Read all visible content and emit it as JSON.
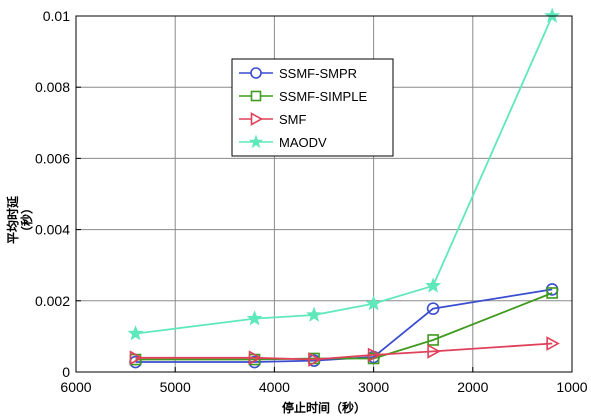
{
  "chart_data": {
    "type": "line",
    "title": "",
    "xlabel": "停止时间（秒）",
    "ylabel_line1": "平均时延",
    "ylabel_line2": "（秒）",
    "x": [
      5400,
      4200,
      3600,
      3000,
      2400,
      1200
    ],
    "xlim": [
      6000,
      1000
    ],
    "x_reversed": true,
    "ylim": [
      0,
      0.01
    ],
    "x_ticks": [
      6000,
      5000,
      4000,
      3000,
      2000,
      1000
    ],
    "x_tick_labels": [
      "6000",
      "5000",
      "4000",
      "3000",
      "2000",
      "1000"
    ],
    "y_ticks": [
      0,
      0.002,
      0.004,
      0.006,
      0.008,
      0.01
    ],
    "y_tick_labels": [
      "0",
      "0.002",
      "0.004",
      "0.006",
      "0.008",
      "0.01"
    ],
    "grid": true,
    "legend_position": "top-center",
    "series": [
      {
        "name": "SSMF-SMPR",
        "color": "#3a4ccf",
        "marker": "circle",
        "values": [
          0.00028,
          0.00028,
          0.00032,
          0.00042,
          0.00178,
          0.00232
        ]
      },
      {
        "name": "SSMF-SIMPLE",
        "color": "#3f9a1f",
        "marker": "square",
        "values": [
          0.00035,
          0.00035,
          0.00038,
          0.00038,
          0.0009,
          0.00222
        ]
      },
      {
        "name": "SMF",
        "color": "#e0405a",
        "marker": "triangle-right",
        "values": [
          0.0004,
          0.0004,
          0.00035,
          0.00048,
          0.00058,
          0.0008
        ]
      },
      {
        "name": "MAODV",
        "color": "#5fe8ba",
        "marker": "star",
        "values": [
          0.00108,
          0.0015,
          0.0016,
          0.00192,
          0.00242,
          0.01
        ]
      }
    ]
  }
}
